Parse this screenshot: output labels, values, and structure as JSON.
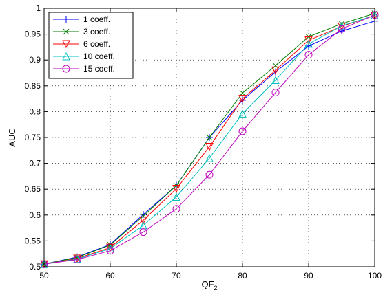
{
  "chart_data": {
    "type": "line",
    "xlabel": "QF",
    "xlabel_sub": "2",
    "ylabel": "AUC",
    "xlim": [
      50,
      100
    ],
    "ylim": [
      0.5,
      1.0
    ],
    "xticks": [
      50,
      60,
      70,
      80,
      90,
      100
    ],
    "xtick_labels": [
      "50",
      "60",
      "70",
      "80",
      "90",
      "100"
    ],
    "yticks": [
      0.5,
      0.55,
      0.6,
      0.65,
      0.7,
      0.75,
      0.8,
      0.85,
      0.9,
      0.95,
      1.0
    ],
    "ytick_labels": [
      "0.5",
      "0.55",
      "0.6",
      "0.65",
      "0.7",
      "0.75",
      "0.8",
      "0.85",
      "0.9",
      "0.95",
      "1"
    ],
    "grid": true,
    "legend_position": "top-left",
    "x": [
      50,
      55,
      60,
      65,
      70,
      75,
      80,
      85,
      90,
      95,
      100
    ],
    "series": [
      {
        "name": "1 coeff.",
        "color": "#0000ff",
        "marker": "plus",
        "values": [
          0.505,
          0.519,
          0.543,
          0.601,
          0.657,
          0.75,
          0.822,
          0.877,
          0.927,
          0.956,
          0.975
        ]
      },
      {
        "name": "3 coeff.",
        "color": "#007f00",
        "marker": "cross",
        "values": [
          0.505,
          0.518,
          0.542,
          0.598,
          0.657,
          0.75,
          0.836,
          0.889,
          0.945,
          0.97,
          0.99
        ]
      },
      {
        "name": "6 coeff.",
        "color": "#ff0000",
        "marker": "triangle-down",
        "values": [
          0.505,
          0.516,
          0.537,
          0.59,
          0.651,
          0.732,
          0.825,
          0.88,
          0.938,
          0.965,
          0.986
        ]
      },
      {
        "name": "10 coeff.",
        "color": "#00bfbf",
        "marker": "triangle-up",
        "values": [
          0.505,
          0.515,
          0.535,
          0.58,
          0.635,
          0.71,
          0.796,
          0.861,
          0.931,
          0.966,
          0.986
        ]
      },
      {
        "name": "15 coeff.",
        "color": "#bf00bf",
        "marker": "circle",
        "values": [
          0.505,
          0.514,
          0.531,
          0.567,
          0.612,
          0.678,
          0.762,
          0.837,
          0.91,
          0.96,
          0.987
        ]
      }
    ]
  }
}
